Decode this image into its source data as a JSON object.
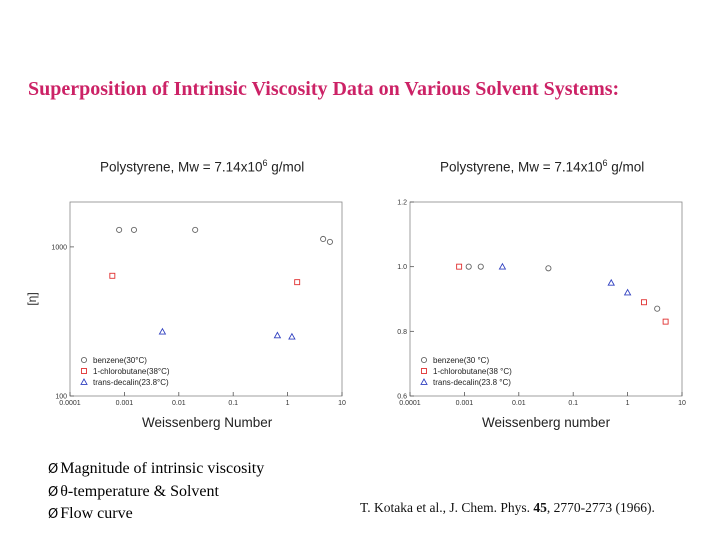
{
  "slide": {
    "title": "Superposition of Intrinsic Viscosity Data on Various Solvent Systems:",
    "bullets": [
      {
        "marker": "Ø",
        "text": "Magnitude of intrinsic viscosity"
      },
      {
        "marker": "Ø",
        "text": "θ-temperature & Solvent"
      },
      {
        "marker": "Ø",
        "text": "Flow curve"
      }
    ],
    "citation": {
      "authors": "T. Kotaka et al., J. Chem. Phys. ",
      "volume": "45",
      "pages": ", 2770-2773 (1966)."
    }
  },
  "colors": {
    "title": "#cc2266",
    "benzene": "#666666",
    "chlorobutane": "#e03030",
    "decalin": "#3040c0"
  },
  "chart_data": [
    {
      "type": "scatter",
      "title_prefix": "Polystyrene, Mw = 7.14x10",
      "title_sup": "6",
      "title_suffix": " g/mol",
      "xlabel": "Weissenberg Number",
      "ylabel": "[η]",
      "xscale": "log",
      "yscale": "log",
      "xlim": [
        0.0001,
        10
      ],
      "ylim": [
        100,
        2000
      ],
      "xticks": [
        "0.0001",
        "0.001",
        "0.01",
        "0.1",
        "1",
        "10"
      ],
      "yticks": [
        {
          "value": 1000,
          "label": "1000"
        },
        {
          "value": 100,
          "label": "100"
        }
      ],
      "legend_position": "bottom-left",
      "series": [
        {
          "name": "benzene(30°C)",
          "marker": "circle",
          "color": "#666666",
          "points": [
            [
              0.0008,
              1300
            ],
            [
              0.0015,
              1300
            ],
            [
              0.02,
              1300
            ],
            [
              4.5,
              1130
            ],
            [
              6.0,
              1080
            ]
          ]
        },
        {
          "name": "1-chlorobutane(38°C)",
          "marker": "square",
          "color": "#e03030",
          "points": [
            [
              0.0006,
              640
            ],
            [
              1.5,
              580
            ]
          ]
        },
        {
          "name": "trans-decalin(23.8°C)",
          "marker": "triangle",
          "color": "#3040c0",
          "points": [
            [
              0.005,
              270
            ],
            [
              0.65,
              255
            ],
            [
              1.2,
              250
            ]
          ]
        }
      ]
    },
    {
      "type": "scatter",
      "title_prefix": "Polystyrene, Mw = 7.14x10",
      "title_sup": "6",
      "title_suffix": " g/mol",
      "xlabel": "Weissenberg number",
      "ylabel": "",
      "xscale": "log",
      "yscale": "linear",
      "xlim": [
        0.0001,
        10
      ],
      "ylim": [
        0.6,
        1.2
      ],
      "xticks": [
        "0.0001",
        "0.001",
        "0.01",
        "0.1",
        "1",
        "10"
      ],
      "yticks": [
        {
          "value": 1.2,
          "label": "1.2"
        },
        {
          "value": 1.0,
          "label": "1.0"
        },
        {
          "value": 0.8,
          "label": "0.8"
        },
        {
          "value": 0.6,
          "label": "0.6"
        }
      ],
      "legend_position": "bottom-left",
      "series": [
        {
          "name": "benzene(30 °C)",
          "marker": "circle",
          "color": "#666666",
          "points": [
            [
              0.0012,
              1.0
            ],
            [
              0.002,
              1.0
            ],
            [
              0.035,
              0.995
            ],
            [
              3.5,
              0.87
            ]
          ]
        },
        {
          "name": "1-chlorobutane(38 °C)",
          "marker": "square",
          "color": "#e03030",
          "points": [
            [
              0.0008,
              1.0
            ],
            [
              2.0,
              0.89
            ],
            [
              5.0,
              0.83
            ]
          ]
        },
        {
          "name": "trans-decalin(23.8 °C)",
          "marker": "triangle",
          "color": "#3040c0",
          "points": [
            [
              0.005,
              1.0
            ],
            [
              0.5,
              0.95
            ],
            [
              1.0,
              0.92
            ]
          ]
        }
      ]
    }
  ]
}
